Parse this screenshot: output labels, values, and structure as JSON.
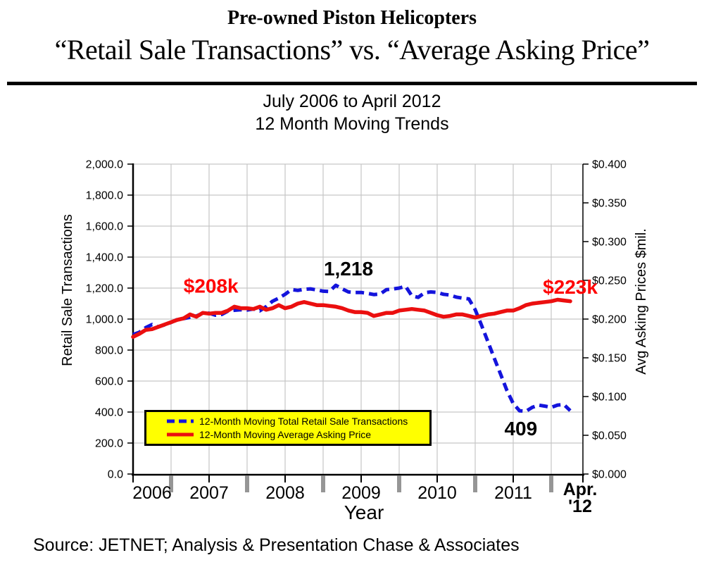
{
  "header": {
    "title": "Pre-owned Piston Helicopters",
    "subtitle": "“Retail Sale Transactions” vs. “Average Asking Price”",
    "period_line1": "July 2006 to April 2012",
    "period_line2": "12 Month Moving Trends"
  },
  "footer": {
    "source": "Source: JETNET; Analysis & Presentation Chase & Associates"
  },
  "chart_data": {
    "type": "line",
    "frequency": "monthly",
    "x_start": "Jul 2006",
    "x_end": "Apr 2012",
    "x_axis": {
      "title": "Year",
      "year_labels": [
        "2006",
        "2007",
        "2008",
        "2009",
        "2010",
        "2011"
      ],
      "end_label_line1": "Apr.",
      "end_label_line2": "'12"
    },
    "y_axis_left": {
      "title": "Retail Sale Transactions",
      "min": 0,
      "max": 2000,
      "step": 200,
      "tick_labels": [
        "0.0",
        "200.0",
        "400.0",
        "600.0",
        "800.0",
        "1,000.0",
        "1,200.0",
        "1,400.0",
        "1,600.0",
        "1,800.0",
        "2,000.0"
      ]
    },
    "y_axis_right": {
      "title": "Avg Asking Prices $mil.",
      "min": 0,
      "max": 0.4,
      "step": 0.05,
      "tick_labels": [
        "$0.000",
        "$0.050",
        "$0.100",
        "$0.150",
        "$0.200",
        "$0.250",
        "$0.300",
        "$0.350",
        "$0.400"
      ]
    },
    "grid": {
      "color": "#C6C6C6",
      "vertical_every_months": 6,
      "horizontal_every": 200
    },
    "series": [
      {
        "name": "12-Month Moving Total Retail Sale Transactions",
        "axis": "left",
        "color": "#1414DC",
        "style": "dashed",
        "values": [
          900,
          915,
          945,
          965,
          950,
          963,
          978,
          998,
          1003,
          1012,
          1020,
          1038,
          1038,
          1025,
          1030,
          1052,
          1057,
          1060,
          1058,
          1065,
          1053,
          1080,
          1115,
          1135,
          1160,
          1190,
          1185,
          1192,
          1195,
          1188,
          1180,
          1178,
          1218,
          1195,
          1175,
          1172,
          1172,
          1166,
          1158,
          1162,
          1190,
          1194,
          1200,
          1212,
          1150,
          1140,
          1170,
          1175,
          1172,
          1160,
          1155,
          1142,
          1135,
          1130,
          1060,
          960,
          855,
          748,
          645,
          540,
          455,
          408,
          405,
          430,
          445,
          438,
          430,
          445,
          448,
          409
        ]
      },
      {
        "name": "12-Month Moving Average Asking Price",
        "axis": "right",
        "color": "#EB0F0F",
        "style": "solid",
        "values": [
          0.177,
          0.181,
          0.186,
          0.187,
          0.19,
          0.193,
          0.196,
          0.199,
          0.201,
          0.206,
          0.203,
          0.208,
          0.207,
          0.208,
          0.208,
          0.211,
          0.216,
          0.214,
          0.214,
          0.213,
          0.216,
          0.212,
          0.214,
          0.218,
          0.214,
          0.216,
          0.22,
          0.222,
          0.22,
          0.218,
          0.218,
          0.217,
          0.216,
          0.214,
          0.211,
          0.209,
          0.209,
          0.208,
          0.204,
          0.206,
          0.208,
          0.208,
          0.211,
          0.212,
          0.213,
          0.212,
          0.211,
          0.208,
          0.205,
          0.203,
          0.204,
          0.206,
          0.206,
          0.204,
          0.202,
          0.204,
          0.206,
          0.207,
          0.209,
          0.211,
          0.211,
          0.214,
          0.218,
          0.22,
          0.221,
          0.222,
          0.223,
          0.225,
          0.224,
          0.223
        ]
      }
    ],
    "annotations": [
      {
        "text": "$208k",
        "color": "#FF0000",
        "month_index": 12.3,
        "value_left": 1170
      },
      {
        "text": "1,218",
        "color": "#000000",
        "month_index": 34.0,
        "value_left": 1282
      },
      {
        "text": "$223k",
        "color": "#FF0000",
        "month_index": 69.0,
        "value_left": 1164
      },
      {
        "text": "409",
        "color": "#000000",
        "month_index": 61.2,
        "value_left": 250
      }
    ],
    "legend": {
      "position": "inside-bottom-left",
      "background": "#FFFF00"
    }
  }
}
